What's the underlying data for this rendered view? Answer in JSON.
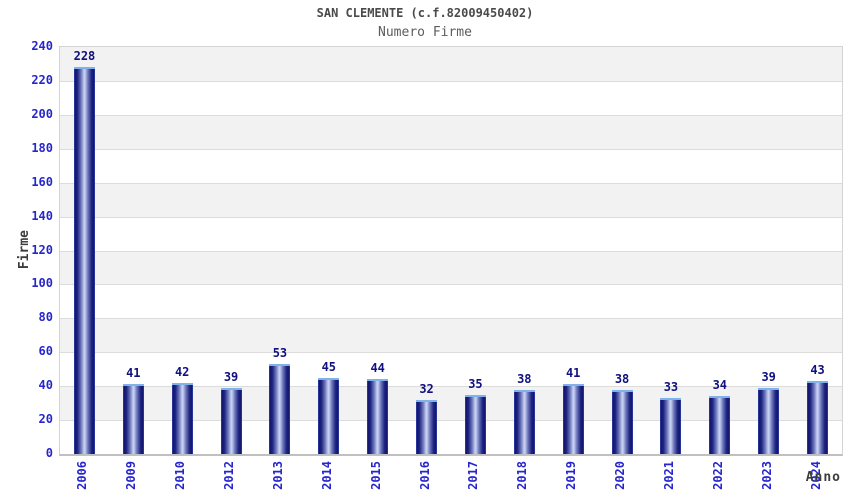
{
  "chart_data": {
    "type": "bar",
    "title": "SAN CLEMENTE (c.f.82009450402)",
    "subtitle": "Numero Firme",
    "xlabel": "Anno",
    "ylabel": "Firme",
    "categories": [
      "2006",
      "2009",
      "2010",
      "2012",
      "2013",
      "2014",
      "2015",
      "2016",
      "2017",
      "2018",
      "2019",
      "2020",
      "2021",
      "2022",
      "2023",
      "2024"
    ],
    "values": [
      228,
      41,
      42,
      39,
      53,
      45,
      44,
      32,
      35,
      38,
      41,
      38,
      33,
      34,
      39,
      43
    ],
    "ylim": [
      0,
      240
    ],
    "ytick_step": 20,
    "grid": true,
    "legend": "none",
    "layout_hints": {
      "bands_alternate": "white below each even gridline, gray above",
      "x_labels_rotated_degrees": 90
    },
    "colors": {
      "bar_edge": "#12156b",
      "bar_center": "#cdd5f2",
      "bar_border": "#4460d8",
      "bar_cap": "#7fb2ea",
      "tick_label": "#2626cc",
      "value_label": "#10107e",
      "title": "#4a4a4a",
      "subtitle": "#5d5d5d",
      "axis_title": "#3d3d3d",
      "band_gray": "#f2f2f2",
      "band_white": "#ffffff",
      "grid_line": "#dcdcdc",
      "plot_border": "#d4d4d4",
      "axis_line": "#c0c0c0"
    }
  }
}
